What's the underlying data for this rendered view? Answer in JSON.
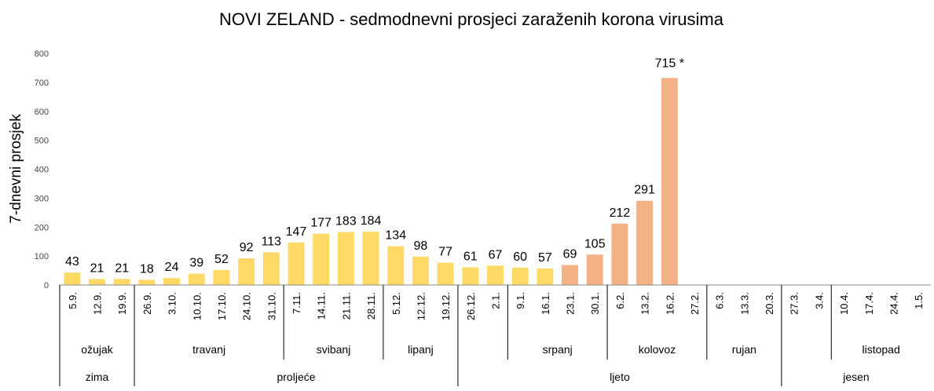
{
  "chart_data": {
    "type": "bar",
    "title": "NOVI ZELAND - sedmodnevni prosjeci zaraženih korona virusima",
    "ylabel": "7-dnevni prosjek",
    "xlabel": "",
    "ylim": [
      0,
      800
    ],
    "yticks": [
      0,
      100,
      200,
      300,
      400,
      500,
      600,
      700,
      800
    ],
    "grid": false,
    "categories": [
      "5.9.",
      "12.9.",
      "19.9.",
      "26.9.",
      "3.10.",
      "10.10.",
      "17.10.",
      "24.10.",
      "31.10.",
      "7.11.",
      "14.11.",
      "21.11.",
      "28.11.",
      "5.12.",
      "12.12.",
      "19.12.",
      "26.12.",
      "2.1.",
      "9.1.",
      "16.1.",
      "23.1.",
      "30.1.",
      "6.2.",
      "13.2.",
      "16.2.",
      "27.2.",
      "6.3.",
      "13.3.",
      "20.3.",
      "27.3.",
      "3.4.",
      "10.4.",
      "17.4.",
      "24.4.",
      "1.5."
    ],
    "values": [
      43,
      21,
      21,
      18,
      24,
      39,
      52,
      92,
      113,
      147,
      177,
      183,
      184,
      134,
      98,
      77,
      61,
      67,
      60,
      57,
      69,
      105,
      212,
      291,
      715,
      null,
      null,
      null,
      null,
      null,
      null,
      null,
      null,
      null,
      null
    ],
    "value_labels": [
      "43",
      "21",
      "21",
      "18",
      "24",
      "39",
      "52",
      "92",
      "113",
      "147",
      "177",
      "183",
      "184",
      "134",
      "98",
      "77",
      "61",
      "67",
      "60",
      "57",
      "69",
      "105",
      "212",
      "291",
      "715 *",
      "",
      "",
      "",
      "",
      "",
      "",
      "",
      "",
      "",
      ""
    ],
    "bar_colors": {
      "yellow": "#FFD966",
      "orange": "#F4B183"
    },
    "orange_from_index": 20,
    "months": [
      {
        "label": "ožujak",
        "start": 0,
        "end": 2
      },
      {
        "label": "travanj",
        "start": 3,
        "end": 8
      },
      {
        "label": "svibanj",
        "start": 9,
        "end": 12
      },
      {
        "label": "lipanj",
        "start": 13,
        "end": 15
      },
      {
        "label": "",
        "start": 16,
        "end": 17
      },
      {
        "label": "srpanj",
        "start": 18,
        "end": 21
      },
      {
        "label": "kolovoz",
        "start": 22,
        "end": 25
      },
      {
        "label": "rujan",
        "start": 26,
        "end": 28
      },
      {
        "label": "",
        "start": 29,
        "end": 30
      },
      {
        "label": "listopad",
        "start": 31,
        "end": 34
      }
    ],
    "seasons": [
      {
        "label": "zima",
        "start": 0,
        "end": 2
      },
      {
        "label": "proljeće",
        "start": 3,
        "end": 15
      },
      {
        "label": "ljeto",
        "start": 16,
        "end": 28
      },
      {
        "label": "jesen",
        "start": 29,
        "end": 34
      }
    ]
  }
}
